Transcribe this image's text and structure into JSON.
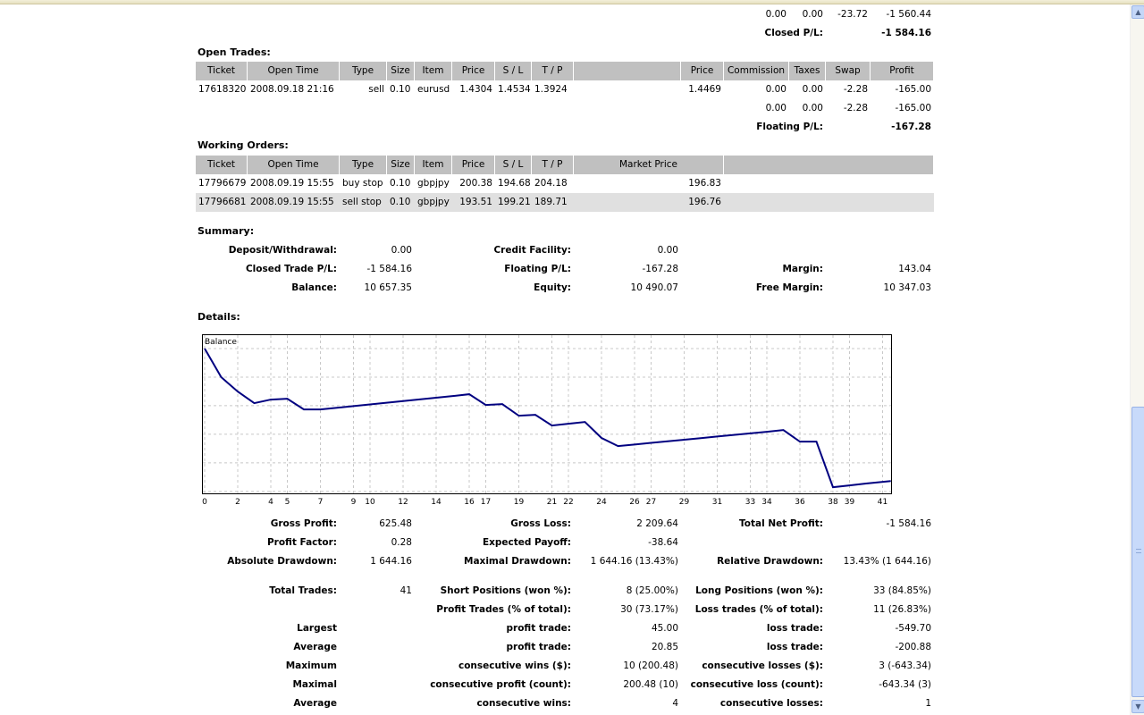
{
  "closed_trades_tail": {
    "totals": [
      "0.00",
      "0.00",
      "-23.72",
      "-1 560.44"
    ],
    "closed_pl_label": "Closed P/L:",
    "closed_pl_value": "-1 584.16"
  },
  "open_trades": {
    "title": "Open Trades:",
    "headers": [
      "Ticket",
      "Open Time",
      "Type",
      "Size",
      "Item",
      "Price",
      "S / L",
      "T / P",
      "",
      "Price",
      "Commission",
      "Taxes",
      "Swap",
      "Profit"
    ],
    "rows": [
      [
        "17618320",
        "2008.09.18 21:16",
        "sell",
        "0.10",
        "eurusd",
        "1.4304",
        "1.4534",
        "1.3924",
        "",
        "1.4469",
        "0.00",
        "0.00",
        "-2.28",
        "-165.00"
      ]
    ],
    "totals": [
      "0.00",
      "0.00",
      "-2.28",
      "-165.00"
    ],
    "floating_pl_label": "Floating P/L:",
    "floating_pl_value": "-167.28"
  },
  "working_orders": {
    "title": "Working Orders:",
    "headers": [
      "Ticket",
      "Open Time",
      "Type",
      "Size",
      "Item",
      "Price",
      "S / L",
      "T / P",
      "Market Price",
      ""
    ],
    "rows": [
      [
        "17796679",
        "2008.09.19 15:55",
        "buy stop",
        "0.10",
        "gbpjpy",
        "200.38",
        "194.68",
        "204.18",
        "196.83",
        ""
      ],
      [
        "17796681",
        "2008.09.19 15:55",
        "sell stop",
        "0.10",
        "gbpjpy",
        "193.51",
        "199.21",
        "189.71",
        "196.76",
        ""
      ]
    ]
  },
  "summary": {
    "title": "Summary:",
    "rows": [
      [
        "Deposit/Withdrawal:",
        "0.00",
        "Credit Facility:",
        "0.00",
        "",
        ""
      ],
      [
        "Closed Trade P/L:",
        "-1 584.16",
        "Floating P/L:",
        "-167.28",
        "Margin:",
        "143.04"
      ],
      [
        "Balance:",
        "10 657.35",
        "Equity:",
        "10 490.07",
        "Free Margin:",
        "10 347.03"
      ]
    ]
  },
  "details": {
    "title": "Details:",
    "stats_block1": [
      [
        "Gross Profit:",
        "625.48",
        "Gross Loss:",
        "2 209.64",
        "Total Net Profit:",
        "-1 584.16"
      ],
      [
        "Profit Factor:",
        "0.28",
        "Expected Payoff:",
        "-38.64",
        "",
        ""
      ],
      [
        "Absolute Drawdown:",
        "1 644.16",
        "Maximal Drawdown:",
        "1 644.16 (13.43%)",
        "Relative Drawdown:",
        "13.43% (1 644.16)"
      ]
    ],
    "stats_block2": [
      [
        "Total Trades:",
        "41",
        "Short Positions (won %):",
        "8 (25.00%)",
        "Long Positions (won %):",
        "33 (84.85%)"
      ],
      [
        "",
        "",
        "Profit Trades (% of total):",
        "30 (73.17%)",
        "Loss trades (% of total):",
        "11 (26.83%)"
      ],
      [
        "Largest",
        "",
        "profit trade:",
        "45.00",
        "loss trade:",
        "-549.70"
      ],
      [
        "Average",
        "",
        "profit trade:",
        "20.85",
        "loss trade:",
        "-200.88"
      ],
      [
        "Maximum",
        "",
        "consecutive wins ($):",
        "10 (200.48)",
        "consecutive losses ($):",
        "3 (-643.34)"
      ],
      [
        "Maximal",
        "",
        "consecutive profit (count):",
        "200.48 (10)",
        "consecutive loss (count):",
        "-643.34 (3)"
      ],
      [
        "Average",
        "",
        "consecutive wins:",
        "4",
        "consecutive losses:",
        "1"
      ]
    ]
  },
  "chart_data": {
    "type": "line",
    "title": "Balance",
    "xlabel": "",
    "ylabel": "",
    "line_color": "#000080",
    "x_ticks": [
      0,
      2,
      4,
      5,
      7,
      9,
      10,
      12,
      14,
      16,
      17,
      19,
      21,
      22,
      24,
      26,
      27,
      29,
      31,
      33,
      34,
      36,
      38,
      39,
      41
    ],
    "y_ticks": [
      12224,
      11882,
      11541,
      11199,
      10857,
      10515
    ],
    "xlim": [
      0,
      41.5
    ],
    "ylim": [
      10497,
      12374
    ],
    "grid": true,
    "series": [
      {
        "name": "Balance",
        "x": [
          0,
          1,
          2,
          3,
          4,
          5,
          6,
          7,
          8,
          9,
          10,
          11,
          12,
          13,
          14,
          15,
          16,
          17,
          18,
          19,
          20,
          21,
          22,
          23,
          24,
          25,
          26,
          27,
          28,
          29,
          30,
          31,
          32,
          33,
          34,
          35,
          36,
          37,
          38,
          39,
          40,
          41.5
        ],
        "y": [
          12224,
          11882,
          11710,
          11571,
          11614,
          11624,
          11496,
          11496,
          11516,
          11536,
          11556,
          11576,
          11596,
          11616,
          11636,
          11656,
          11678,
          11550,
          11560,
          11421,
          11432,
          11304,
          11325,
          11346,
          11155,
          11058,
          11077,
          11096,
          11115,
          11134,
          11153,
          11172,
          11191,
          11210,
          11229,
          11250,
          11111,
          11111,
          10566,
          10587,
          10610,
          10640
        ]
      }
    ]
  }
}
